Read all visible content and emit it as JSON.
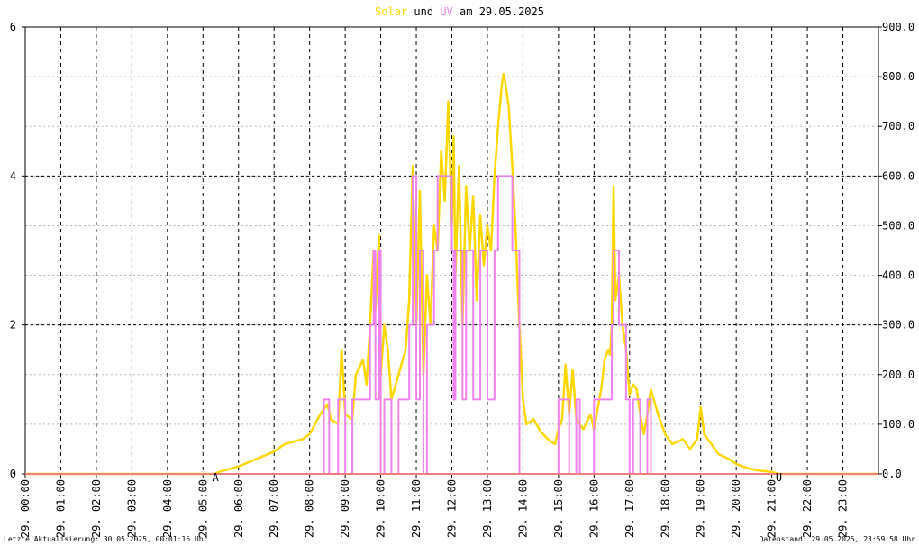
{
  "chart_data": {
    "type": "line",
    "title_connector": "und",
    "title_date": "am 29.05.2025",
    "footer_left": "Letzte Aktualisierung: 30.05.2025, 00:01:16 Uhr",
    "footer_right": "Datenstand: 29.05.2025, 23:59:58 Uhr",
    "xlim": [
      0,
      24
    ],
    "xticks": [
      {
        "value": 0,
        "label": "29. 00:00"
      },
      {
        "value": 1,
        "label": "29. 01:00"
      },
      {
        "value": 2,
        "label": "29. 02:00"
      },
      {
        "value": 3,
        "label": "29. 03:00"
      },
      {
        "value": 4,
        "label": "29. 04:00"
      },
      {
        "value": 5,
        "label": "29. 05:00"
      },
      {
        "value": 6,
        "label": "29. 06:00"
      },
      {
        "value": 7,
        "label": "29. 07:00"
      },
      {
        "value": 8,
        "label": "29. 08:00"
      },
      {
        "value": 9,
        "label": "29. 09:00"
      },
      {
        "value": 10,
        "label": "29. 10:00"
      },
      {
        "value": 11,
        "label": "29. 11:00"
      },
      {
        "value": 12,
        "label": "29. 12:00"
      },
      {
        "value": 13,
        "label": "29. 13:00"
      },
      {
        "value": 14,
        "label": "29. 14:00"
      },
      {
        "value": 15,
        "label": "29. 15:00"
      },
      {
        "value": 16,
        "label": "29. 16:00"
      },
      {
        "value": 17,
        "label": "29. 17:00"
      },
      {
        "value": 18,
        "label": "29. 18:00"
      },
      {
        "value": 19,
        "label": "29. 19:00"
      },
      {
        "value": 20,
        "label": "29. 20:00"
      },
      {
        "value": 21,
        "label": "29. 21:00"
      },
      {
        "value": 22,
        "label": "29. 22:00"
      },
      {
        "value": 23,
        "label": "29. 23:00"
      }
    ],
    "ylim": [
      0,
      6
    ],
    "yticks": [
      0,
      2,
      4,
      6
    ],
    "y2lim": [
      0,
      900
    ],
    "y2ticks": [
      {
        "value": 0,
        "label": "0.0"
      },
      {
        "value": 100,
        "label": "100.0"
      },
      {
        "value": 200,
        "label": "200.0"
      },
      {
        "value": 300,
        "label": "300.0"
      },
      {
        "value": 400,
        "label": "400.0"
      },
      {
        "value": 500,
        "label": "500.0"
      },
      {
        "value": 600,
        "label": "600.0"
      },
      {
        "value": 700,
        "label": "700.0"
      },
      {
        "value": 800,
        "label": "800.0"
      },
      {
        "value": 900,
        "label": "900.0"
      }
    ],
    "grid": true,
    "annotations": [
      {
        "text": "A",
        "x": 5.35
      },
      {
        "text": "U",
        "x": 21.2
      }
    ],
    "series": [
      {
        "name": "Solar",
        "color": "#ffd700",
        "axis": "y2",
        "step": false,
        "x": [
          0,
          5.3,
          5.5,
          6.0,
          6.5,
          7.0,
          7.3,
          7.8,
          8.0,
          8.3,
          8.5,
          8.6,
          8.8,
          8.9,
          9.0,
          9.2,
          9.3,
          9.5,
          9.6,
          9.7,
          9.8,
          9.85,
          9.95,
          10.0,
          10.1,
          10.2,
          10.3,
          10.5,
          10.7,
          10.8,
          10.9,
          11.0,
          11.1,
          11.2,
          11.3,
          11.4,
          11.5,
          11.6,
          11.7,
          11.8,
          11.9,
          12.0,
          12.05,
          12.1,
          12.2,
          12.3,
          12.4,
          12.5,
          12.6,
          12.7,
          12.8,
          12.9,
          13.0,
          13.1,
          13.2,
          13.3,
          13.4,
          13.45,
          13.5,
          13.6,
          13.7,
          13.8,
          13.85,
          13.9,
          14.0,
          14.1,
          14.3,
          14.5,
          14.7,
          14.9,
          15.0,
          15.1,
          15.2,
          15.3,
          15.4,
          15.5,
          15.7,
          15.9,
          16.0,
          16.2,
          16.3,
          16.4,
          16.45,
          16.5,
          16.55,
          16.6,
          16.7,
          16.8,
          16.9,
          17.0,
          17.1,
          17.2,
          17.3,
          17.4,
          17.5,
          17.6,
          17.8,
          18.0,
          18.2,
          18.5,
          18.7,
          18.9,
          19.0,
          19.1,
          19.3,
          19.5,
          19.8,
          20.0,
          20.3,
          20.6,
          21.0,
          21.2,
          24
        ],
        "values": [
          0,
          0,
          5,
          15,
          30,
          45,
          60,
          70,
          80,
          120,
          140,
          110,
          100,
          250,
          120,
          110,
          200,
          230,
          180,
          300,
          450,
          330,
          480,
          200,
          300,
          250,
          150,
          200,
          250,
          350,
          620,
          300,
          570,
          200,
          400,
          300,
          500,
          450,
          650,
          550,
          750,
          500,
          680,
          400,
          620,
          300,
          580,
          450,
          560,
          350,
          520,
          420,
          500,
          450,
          600,
          700,
          780,
          805,
          790,
          740,
          620,
          480,
          380,
          300,
          150,
          100,
          110,
          85,
          70,
          60,
          90,
          110,
          220,
          120,
          210,
          110,
          90,
          120,
          90,
          170,
          230,
          250,
          240,
          300,
          580,
          350,
          400,
          300,
          250,
          160,
          180,
          170,
          120,
          80,
          120,
          170,
          120,
          80,
          60,
          70,
          50,
          70,
          134,
          80,
          60,
          40,
          30,
          20,
          12,
          7,
          4,
          0,
          0
        ]
      },
      {
        "name": "UV",
        "color": "#ee82ee",
        "axis": "y",
        "step": true,
        "x": [
          0,
          8.4,
          8.55,
          8.8,
          9.0,
          9.2,
          9.7,
          9.8,
          9.85,
          9.95,
          10.0,
          10.1,
          10.3,
          10.5,
          10.8,
          10.9,
          11.0,
          11.1,
          11.2,
          11.3,
          11.5,
          11.6,
          12.0,
          12.05,
          12.1,
          12.3,
          12.4,
          12.6,
          12.8,
          13.0,
          13.2,
          13.3,
          13.7,
          13.9,
          15.0,
          15.3,
          15.5,
          15.6,
          16.0,
          16.5,
          16.55,
          16.7,
          16.9,
          17.0,
          17.1,
          17.3,
          17.5,
          17.6,
          24
        ],
        "values": [
          0,
          1,
          0,
          1,
          0,
          1,
          2,
          3,
          1,
          3,
          0,
          1,
          0,
          1,
          2,
          4,
          1,
          3,
          0,
          2,
          3,
          4,
          3,
          1,
          3,
          1,
          3,
          1,
          3,
          1,
          3,
          4,
          3,
          0,
          1,
          0,
          1,
          0,
          1,
          2,
          3,
          2,
          1,
          0,
          1,
          0,
          1,
          0,
          0
        ]
      }
    ]
  }
}
